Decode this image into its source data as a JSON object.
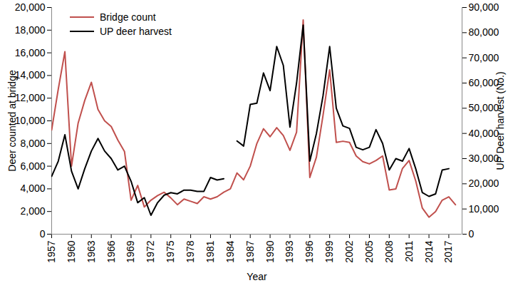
{
  "chart_data": {
    "type": "line",
    "xlabel": "Year",
    "ylabel": "Deer counted at bridge",
    "y2label": "UP Deer harvest (No.)",
    "legend": "top-left",
    "x": [
      1957,
      1958,
      1959,
      1960,
      1961,
      1962,
      1963,
      1964,
      1965,
      1966,
      1967,
      1968,
      1969,
      1970,
      1971,
      1972,
      1973,
      1974,
      1975,
      1976,
      1977,
      1978,
      1979,
      1980,
      1981,
      1982,
      1983,
      1984,
      1985,
      1986,
      1987,
      1988,
      1989,
      1990,
      1991,
      1992,
      1993,
      1994,
      1995,
      1996,
      1997,
      1998,
      1999,
      2000,
      2001,
      2002,
      2003,
      2004,
      2005,
      2006,
      2007,
      2008,
      2009,
      2010,
      2011,
      2012,
      2013,
      2014,
      2015,
      2016,
      2017,
      2018
    ],
    "xlim": [
      1957,
      2019
    ],
    "xticks": [
      1957,
      1960,
      1963,
      1966,
      1969,
      1972,
      1975,
      1978,
      1981,
      1984,
      1987,
      1990,
      1993,
      1996,
      1999,
      2002,
      2005,
      2008,
      2011,
      2014,
      2017
    ],
    "ylim": [
      0,
      20000
    ],
    "yticks": [
      0,
      {
        "value": 2000,
        "label": "2,000"
      },
      {
        "value": 4000,
        "label": "4,000"
      },
      {
        "value": 6000,
        "label": "6,000"
      },
      {
        "value": 8000,
        "label": "8,000"
      },
      {
        "value": 10000,
        "label": "10,000"
      },
      {
        "value": 12000,
        "label": "12,000"
      },
      {
        "value": 14000,
        "label": "14,000"
      },
      {
        "value": 16000,
        "label": "16,000"
      },
      {
        "value": 18000,
        "label": "18,000"
      },
      {
        "value": 20000,
        "label": "20,000"
      }
    ],
    "y2lim": [
      0,
      90000
    ],
    "y2ticks": [
      0,
      {
        "value": 10000,
        "label": "10,000"
      },
      {
        "value": 20000,
        "label": "20,000"
      },
      {
        "value": 30000,
        "label": "30,000"
      },
      {
        "value": 40000,
        "label": "40,000"
      },
      {
        "value": 50000,
        "label": "50,000"
      },
      {
        "value": 60000,
        "label": "60,000"
      },
      {
        "value": 70000,
        "label": "70,000"
      },
      {
        "value": 80000,
        "label": "80,000"
      },
      {
        "value": 90000,
        "label": "90,000"
      }
    ],
    "series": [
      {
        "name": "Bridge count",
        "color": "#c0504d",
        "values": [
          9200,
          12800,
          16100,
          6000,
          9800,
          11800,
          13400,
          11000,
          10000,
          9500,
          8300,
          7300,
          3000,
          4300,
          2400,
          3000,
          3400,
          3700,
          3200,
          2600,
          3100,
          2900,
          2700,
          3300,
          3100,
          3300,
          3700,
          4000,
          5400,
          4800,
          6000,
          8000,
          9300,
          8600,
          9400,
          8700,
          7400,
          9000,
          18900,
          5000,
          6800,
          10500,
          14500,
          8100,
          8200,
          8100,
          6900,
          6400,
          6200,
          6500,
          6900,
          3900,
          4000,
          5800,
          6500,
          4700,
          2300,
          1500,
          2000,
          3000,
          3300,
          2600
        ]
      },
      {
        "name": "UP deer harvest",
        "color": "#000000",
        "axis": "y2",
        "values": [
          23000,
          29000,
          39500,
          25000,
          18000,
          26000,
          33000,
          38000,
          33000,
          30000,
          25500,
          27000,
          21000,
          12500,
          14500,
          7500,
          12500,
          15500,
          16500,
          16000,
          17500,
          17500,
          17000,
          17000,
          22500,
          21500,
          22000,
          null,
          37000,
          35000,
          51500,
          52000,
          64000,
          57000,
          74500,
          67000,
          42500,
          60000,
          83000,
          29000,
          40000,
          55000,
          74500,
          50000,
          43000,
          42000,
          34500,
          33500,
          34500,
          41500,
          36000,
          25500,
          30000,
          29000,
          34000,
          26000,
          16500,
          15000,
          16000,
          25500,
          26000,
          null
        ]
      }
    ]
  }
}
